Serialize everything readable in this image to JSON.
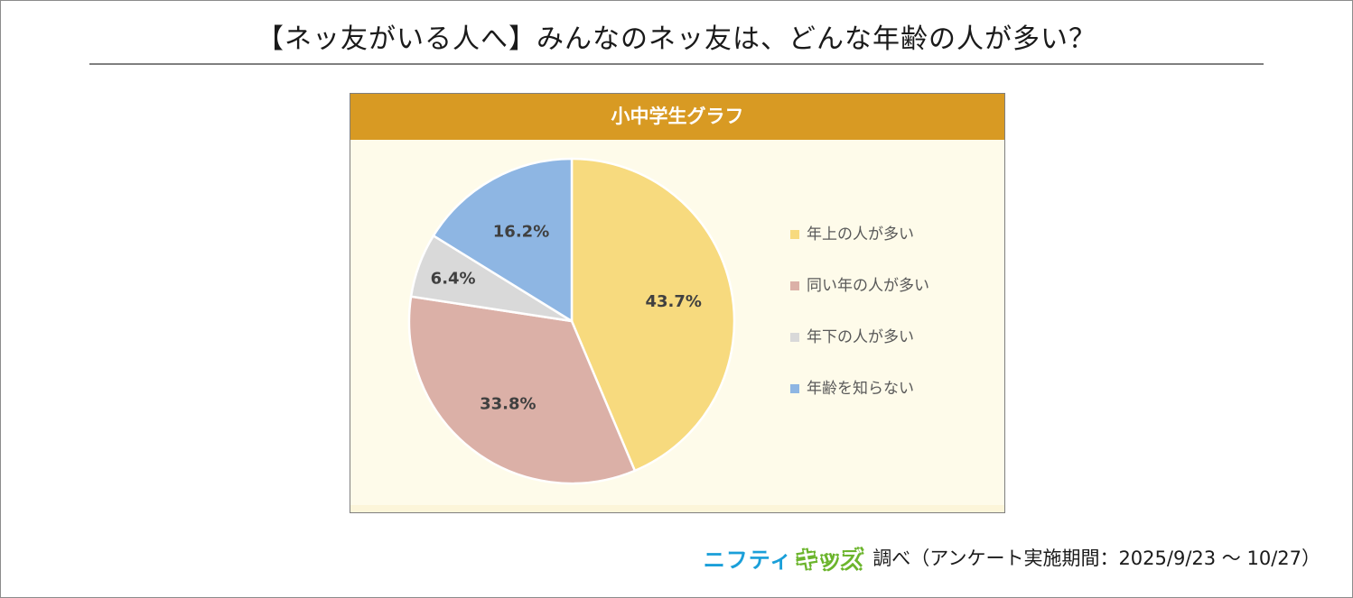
{
  "title": "【ネッ友がいる人へ】みんなのネッ友は、どんな年齢の人が多い？",
  "chart_data": {
    "type": "pie",
    "title": "小中学生グラフ",
    "slices": [
      {
        "label": "年上の人が多い",
        "value": 43.7,
        "display": "43.7%",
        "color": "#f7da7e"
      },
      {
        "label": "同い年の人が多い",
        "value": 33.8,
        "display": "33.8%",
        "color": "#dbb0a7"
      },
      {
        "label": "年下の人が多い",
        "value": 6.4,
        "display": "6.4%",
        "color": "#d9d9d9"
      },
      {
        "label": "年齢を知らない",
        "value": 16.2,
        "display": "16.2%",
        "color": "#8eb6e3"
      }
    ],
    "legend_position": "right",
    "start_angle": "12 o'clock",
    "direction": "clockwise"
  },
  "footer": {
    "logo_part1": "ニフティ",
    "logo_part2": "キッズ",
    "text": "調べ（アンケート実施期間：2025/9/23 ～ 10/27）"
  },
  "colors": {
    "header": "#d89a23",
    "panel_bg": "#fefbea",
    "logo_blue": "#1a9fd9",
    "logo_green": "#6cb52d"
  }
}
